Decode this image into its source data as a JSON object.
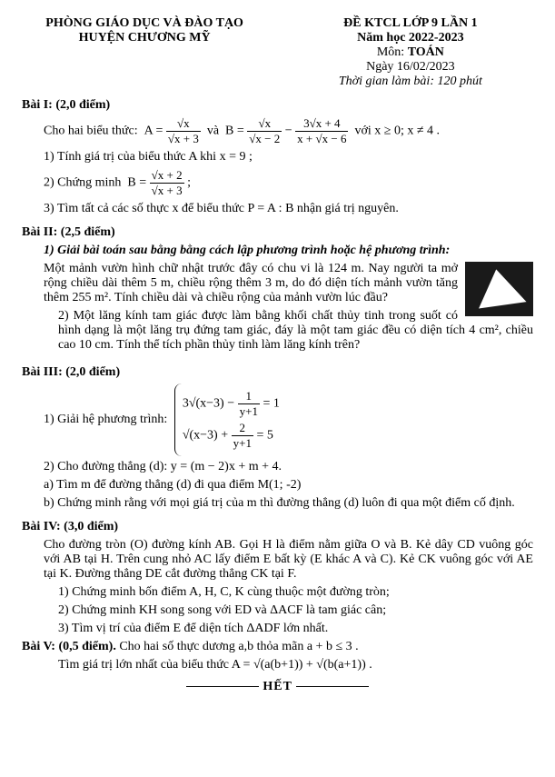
{
  "header": {
    "dept": "PHÒNG GIÁO DỤC VÀ ĐÀO TẠO",
    "district": "HUYỆN CHƯƠNG MỸ",
    "exam": "ĐỀ KTCL LỚP 9 LẦN 1",
    "year": "Năm học 2022-2023",
    "subject_label": "Môn:",
    "subject": "TOÁN",
    "date": "Ngày 16/02/2023",
    "duration": "Thời gian làm bài: 120 phút"
  },
  "bai1": {
    "title": "Bài I: (2,0 điểm)",
    "intro": "Cho hai biểu thức:",
    "cond": "với x ≥ 0; x ≠ 4 .",
    "q1": "1) Tính giá trị của biểu thức A khi x = 9 ;",
    "q2": "2) Chứng minh",
    "q3": "3) Tìm tất cả các số thực x để biểu thức P = A : B nhận giá trị nguyên."
  },
  "bai2": {
    "title": "Bài II: (2,5 điểm)",
    "q1_head": "1) Giải bài toán sau bằng bằng cách lập phương trình hoặc hệ phương trình:",
    "p1": "Một mảnh vườn hình chữ nhật trước đây có chu vi là 124 m. Nay người ta mở rộng chiều dài thêm 5 m, chiều rộng thêm 3 m, do đó diện tích mảnh vườn tăng thêm 255 m². Tính chiều dài và chiều rộng của mảnh vườn lúc đầu?",
    "q2": "2) Một lăng kính tam giác được làm bằng khối chất thủy tinh trong suốt có hình dạng là một lăng trụ đứng tam giác, đáy là một tam giác đều có diện tích 4 cm², chiều cao 10 cm. Tính thể tích phần thủy tinh làm lăng kính trên?"
  },
  "bai3": {
    "title": "Bài III: (2,0 điểm)",
    "q1": "1) Giải hệ phương trình:",
    "sys1": "3√(x−3) − 1/(y+1) = 1",
    "sys2": "√(x−3) + 2/(y+1) = 5",
    "q2": "2) Cho đường thẳng (d): y = (m − 2)x + m + 4.",
    "q2a": "a) Tìm m để đường thẳng (d) đi qua điểm M(1; -2)",
    "q2b": "b) Chứng minh rằng với mọi giá trị của m thì đường thẳng (d) luôn đi qua một điểm cố định."
  },
  "bai4": {
    "title": "Bài IV: (3,0 điểm)",
    "p": "Cho đường tròn (O) đường kính AB. Gọi H là điểm nằm giữa O và B. Kẻ dây CD vuông góc với AB tại H. Trên cung nhỏ AC lấy điểm E bất kỳ (E khác A và C). Kẻ CK vuông góc với AE tại K. Đường thẳng DE cắt đường thẳng CK tại F.",
    "q1": "1) Chứng minh bốn điểm A, H, C, K cùng thuộc một đường tròn;",
    "q2": "2) Chứng minh KH song song với ED và ΔACF là tam giác cân;",
    "q3": "3) Tìm vị trí của điểm E để diện tích ΔADF lớn nhất."
  },
  "bai5": {
    "title": "Bài V: (0,5 điểm).",
    "intro": "Cho hai số thực dương a,b thỏa mãn a + b ≤ 3 .",
    "q": "Tìm giá trị lớn nhất của biểu thức A = √(a(b+1)) + √(b(a+1)) ."
  },
  "footer": "HẾT"
}
